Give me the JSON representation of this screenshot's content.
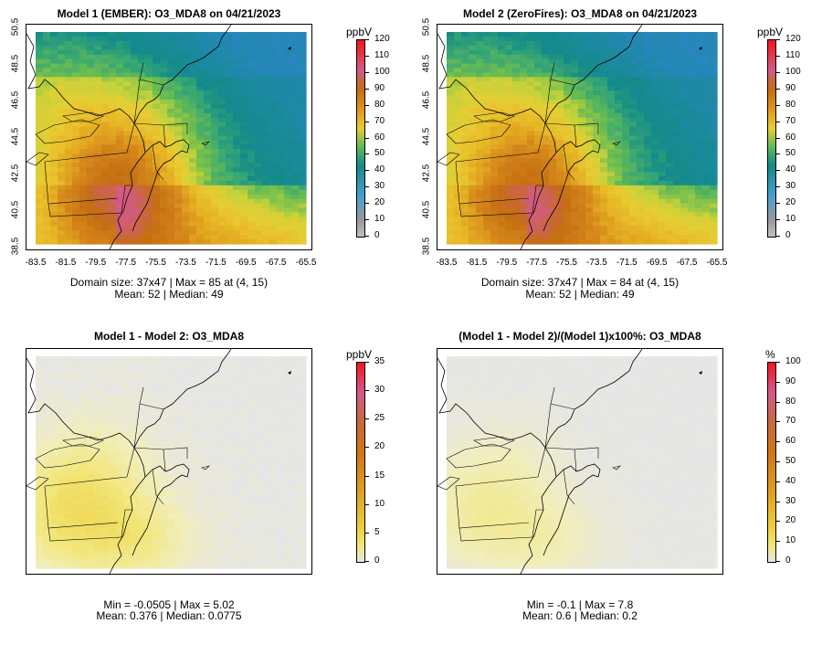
{
  "panels": [
    {
      "title": "Model 1 (EMBER): O3_MDA8 on 04/21/2023",
      "unit": "ppbV",
      "stats_line1": "Domain size: 37x47 | Max = 85 at (4, 15)",
      "stats_line2": "Mean: 52 |  Median: 49",
      "legend_ticks": [
        "120",
        "110",
        "100",
        "90",
        "80",
        "70",
        "60",
        "50",
        "40",
        "30",
        "20",
        "10",
        "0"
      ],
      "legend_type": "conc",
      "field": "conc1"
    },
    {
      "title": "Model 2 (ZeroFires): O3_MDA8 on 04/21/2023",
      "unit": "ppbV",
      "stats_line1": "Domain size: 37x47 | Max = 84 at (4, 15)",
      "stats_line2": "Mean: 52 |  Median: 49",
      "legend_ticks": [
        "120",
        "110",
        "100",
        "90",
        "80",
        "70",
        "60",
        "50",
        "40",
        "30",
        "20",
        "10",
        "0"
      ],
      "legend_type": "conc",
      "field": "conc2"
    },
    {
      "title": "Model 1 - Model 2: O3_MDA8",
      "unit": "ppbV",
      "stats_line1": "Min = -0.0505 | Max = 5.02",
      "stats_line2": "Mean: 0.376 |  Median: 0.0775",
      "legend_ticks": [
        "35",
        "30",
        "25",
        "20",
        "15",
        "10",
        "5",
        "0"
      ],
      "legend_type": "diff",
      "field": "diff"
    },
    {
      "title": "(Model 1 - Model 2)/(Model 1)x100%: O3_MDA8",
      "unit": "%",
      "stats_line1": "Min = -0.1 | Max = 7.8",
      "stats_line2": "Mean: 0.6 |  Median: 0.2",
      "legend_ticks": [
        "100",
        "90",
        "80",
        "70",
        "60",
        "50",
        "40",
        "30",
        "20",
        "10",
        "0"
      ],
      "legend_type": "diff",
      "field": "pct"
    }
  ],
  "lat_ticks": [
    "50.5",
    "48.5",
    "46.5",
    "44.5",
    "42.5",
    "40.5",
    "38.5"
  ],
  "lon_ticks": [
    "-83.5",
    "-81.5",
    "-79.5",
    "-77.5",
    "-75.5",
    "-73.5",
    "-71.5",
    "-69.5",
    "-67.5",
    "-65.5"
  ],
  "colors": {
    "background_gray": "#e6e6e6",
    "teal": "#138a8a",
    "green": "#55b85c",
    "yellow": "#e7cd34",
    "orange": "#d98d1a",
    "dark_orange": "#c46e12"
  }
}
